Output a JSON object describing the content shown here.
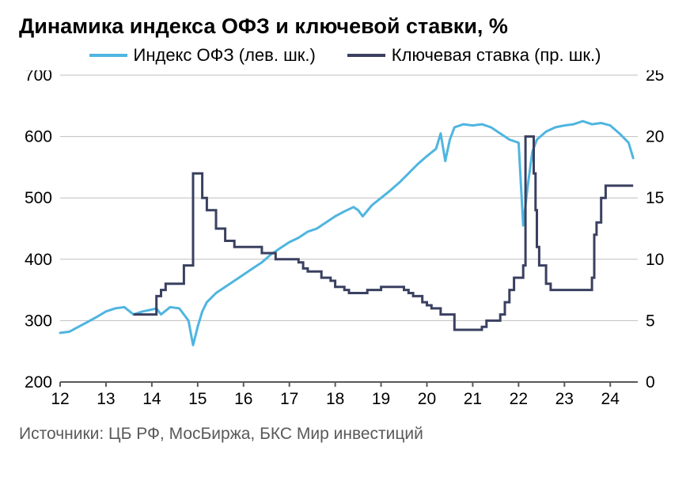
{
  "title": "Динамика индекса ОФЗ и ключевой ставки, %",
  "footer": "Источники: ЦБ РФ, МосБиржа, БКС Мир инвестиций",
  "series1": {
    "label": "Индекс ОФЗ (лев. шк.)",
    "color": "#4fb5e0",
    "line_width": 3
  },
  "series2": {
    "label": "Ключевая ставка (пр. шк.)",
    "color": "#3a4060",
    "line_width": 3
  },
  "chart": {
    "type": "line-dual-axis",
    "background_color": "#ffffff",
    "grid_color": "#bfbfbf",
    "border_color": "#595959",
    "x": {
      "min": 12,
      "max": 24.6,
      "ticks": [
        12,
        13,
        14,
        15,
        16,
        17,
        18,
        19,
        20,
        21,
        22,
        23,
        24
      ],
      "fontsize": 21
    },
    "y_left": {
      "min": 200,
      "max": 700,
      "ticks": [
        200,
        300,
        400,
        500,
        600,
        700
      ],
      "fontsize": 21
    },
    "y_right": {
      "min": 0,
      "max": 25,
      "ticks": [
        0,
        5,
        10,
        15,
        20,
        25
      ],
      "fontsize": 21
    },
    "ofz_data": [
      [
        12.0,
        280
      ],
      [
        12.2,
        282
      ],
      [
        12.4,
        290
      ],
      [
        12.6,
        298
      ],
      [
        12.8,
        306
      ],
      [
        13.0,
        315
      ],
      [
        13.2,
        320
      ],
      [
        13.4,
        322
      ],
      [
        13.6,
        310
      ],
      [
        13.8,
        315
      ],
      [
        14.0,
        318
      ],
      [
        14.1,
        320
      ],
      [
        14.2,
        310
      ],
      [
        14.4,
        322
      ],
      [
        14.6,
        320
      ],
      [
        14.8,
        300
      ],
      [
        14.9,
        260
      ],
      [
        15.0,
        290
      ],
      [
        15.1,
        315
      ],
      [
        15.2,
        330
      ],
      [
        15.4,
        345
      ],
      [
        15.6,
        355
      ],
      [
        15.8,
        365
      ],
      [
        16.0,
        375
      ],
      [
        16.2,
        385
      ],
      [
        16.4,
        395
      ],
      [
        16.6,
        408
      ],
      [
        16.8,
        418
      ],
      [
        17.0,
        428
      ],
      [
        17.2,
        435
      ],
      [
        17.4,
        445
      ],
      [
        17.6,
        450
      ],
      [
        17.8,
        460
      ],
      [
        18.0,
        470
      ],
      [
        18.2,
        478
      ],
      [
        18.4,
        485
      ],
      [
        18.5,
        480
      ],
      [
        18.6,
        470
      ],
      [
        18.8,
        488
      ],
      [
        19.0,
        500
      ],
      [
        19.2,
        512
      ],
      [
        19.4,
        525
      ],
      [
        19.6,
        540
      ],
      [
        19.8,
        555
      ],
      [
        20.0,
        568
      ],
      [
        20.2,
        580
      ],
      [
        20.3,
        605
      ],
      [
        20.4,
        560
      ],
      [
        20.5,
        595
      ],
      [
        20.6,
        615
      ],
      [
        20.8,
        620
      ],
      [
        21.0,
        618
      ],
      [
        21.2,
        620
      ],
      [
        21.4,
        615
      ],
      [
        21.6,
        605
      ],
      [
        21.8,
        595
      ],
      [
        22.0,
        590
      ],
      [
        22.1,
        455
      ],
      [
        22.2,
        520
      ],
      [
        22.3,
        575
      ],
      [
        22.4,
        595
      ],
      [
        22.6,
        608
      ],
      [
        22.8,
        615
      ],
      [
        23.0,
        618
      ],
      [
        23.2,
        620
      ],
      [
        23.4,
        625
      ],
      [
        23.6,
        620
      ],
      [
        23.8,
        622
      ],
      [
        24.0,
        618
      ],
      [
        24.2,
        605
      ],
      [
        24.4,
        590
      ],
      [
        24.5,
        565
      ]
    ],
    "rate_data": [
      [
        13.6,
        5.5
      ],
      [
        13.8,
        5.5
      ],
      [
        14.0,
        5.5
      ],
      [
        14.1,
        7.0
      ],
      [
        14.2,
        7.5
      ],
      [
        14.3,
        8.0
      ],
      [
        14.7,
        9.5
      ],
      [
        14.85,
        9.5
      ],
      [
        14.9,
        17.0
      ],
      [
        15.0,
        17.0
      ],
      [
        15.1,
        15.0
      ],
      [
        15.2,
        14.0
      ],
      [
        15.4,
        12.5
      ],
      [
        15.6,
        11.5
      ],
      [
        15.8,
        11.0
      ],
      [
        16.0,
        11.0
      ],
      [
        16.4,
        10.5
      ],
      [
        16.7,
        10.0
      ],
      [
        17.0,
        10.0
      ],
      [
        17.2,
        9.75
      ],
      [
        17.3,
        9.25
      ],
      [
        17.4,
        9.0
      ],
      [
        17.7,
        8.5
      ],
      [
        17.9,
        8.25
      ],
      [
        18.0,
        7.75
      ],
      [
        18.2,
        7.5
      ],
      [
        18.3,
        7.25
      ],
      [
        18.7,
        7.5
      ],
      [
        19.0,
        7.75
      ],
      [
        19.5,
        7.5
      ],
      [
        19.6,
        7.25
      ],
      [
        19.7,
        7.0
      ],
      [
        19.9,
        6.5
      ],
      [
        20.0,
        6.25
      ],
      [
        20.1,
        6.0
      ],
      [
        20.3,
        5.5
      ],
      [
        20.6,
        4.25
      ],
      [
        21.2,
        4.5
      ],
      [
        21.3,
        5.0
      ],
      [
        21.6,
        5.5
      ],
      [
        21.7,
        6.5
      ],
      [
        21.8,
        7.5
      ],
      [
        21.9,
        8.5
      ],
      [
        22.1,
        9.5
      ],
      [
        22.15,
        20.0
      ],
      [
        22.3,
        20.0
      ],
      [
        22.33,
        17.0
      ],
      [
        22.37,
        14.0
      ],
      [
        22.4,
        11.0
      ],
      [
        22.45,
        9.5
      ],
      [
        22.6,
        8.0
      ],
      [
        22.7,
        7.5
      ],
      [
        23.6,
        8.5
      ],
      [
        23.65,
        12.0
      ],
      [
        23.7,
        13.0
      ],
      [
        23.8,
        15.0
      ],
      [
        23.9,
        16.0
      ],
      [
        24.5,
        16.0
      ]
    ]
  }
}
